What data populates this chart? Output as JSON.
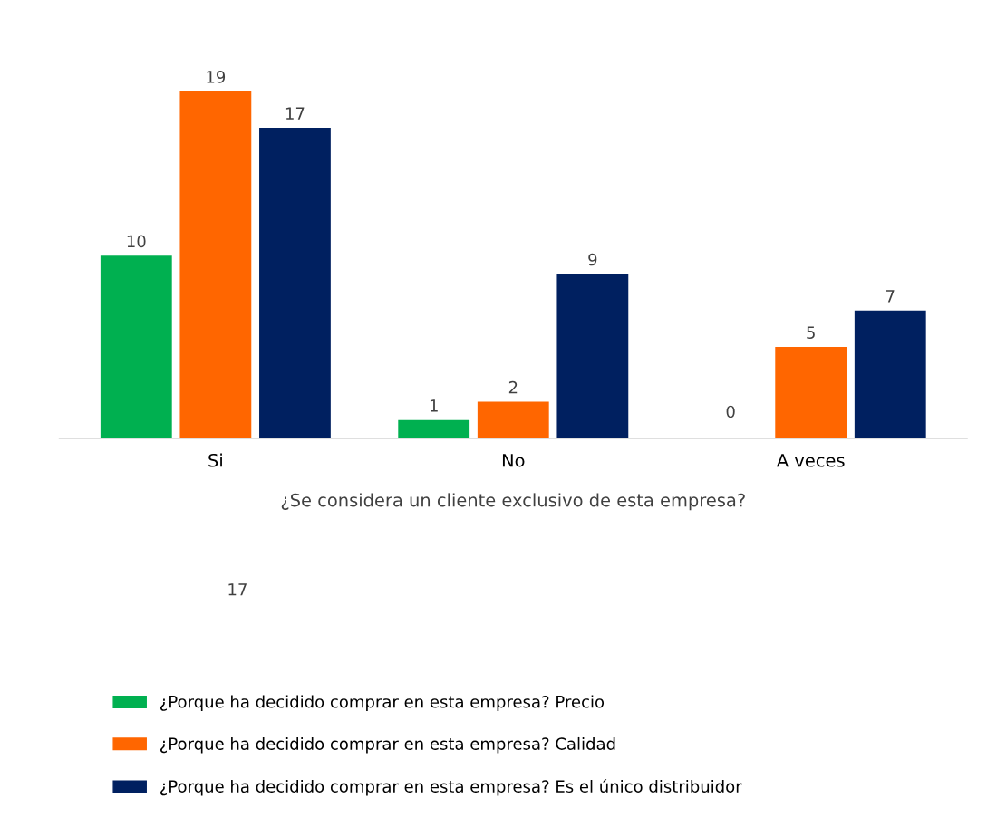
{
  "chart_data": {
    "type": "bar",
    "xlabel": "¿Se considera un cliente exclusivo de esta empresa?",
    "categories": [
      "Si",
      "No",
      "A veces"
    ],
    "series": [
      {
        "name": "¿Porque ha decidido comprar en esta empresa? Precio",
        "color": "#00b050",
        "values": [
          10,
          1,
          0
        ],
        "value_labels": [
          "10",
          "1",
          null
        ]
      },
      {
        "name": "¿Porque ha decidido comprar en esta empresa? Calidad",
        "color": "#ff6600",
        "values": [
          19,
          2,
          5
        ],
        "value_labels": [
          "19",
          "2",
          "5"
        ]
      },
      {
        "name": "¿Porque ha decidido comprar en esta empresa? Es el único distribuidor",
        "color": "#002060",
        "values": [
          17,
          9,
          7
        ],
        "value_labels": [
          "17",
          "9",
          "7"
        ]
      }
    ],
    "legend": "bottom",
    "grid": false,
    "annotations": [
      "0",
      "17"
    ]
  }
}
